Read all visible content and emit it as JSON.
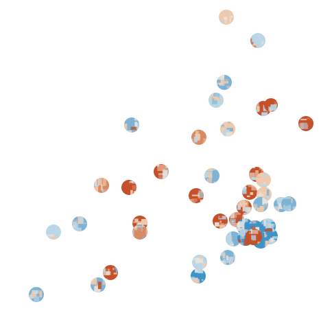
{
  "palette": {
    "strong_red": "#c4512a",
    "mid_red": "#d98a63",
    "light_red": "#f0c9ad",
    "neutral": "#e8e3dc",
    "light_blue": "#b9d7e6",
    "mid_blue": "#7fb3d5",
    "strong_blue": "#3e93c7"
  },
  "map_layer": {
    "kind": "choropleth-dot-map",
    "background": "#ffffff"
  }
}
